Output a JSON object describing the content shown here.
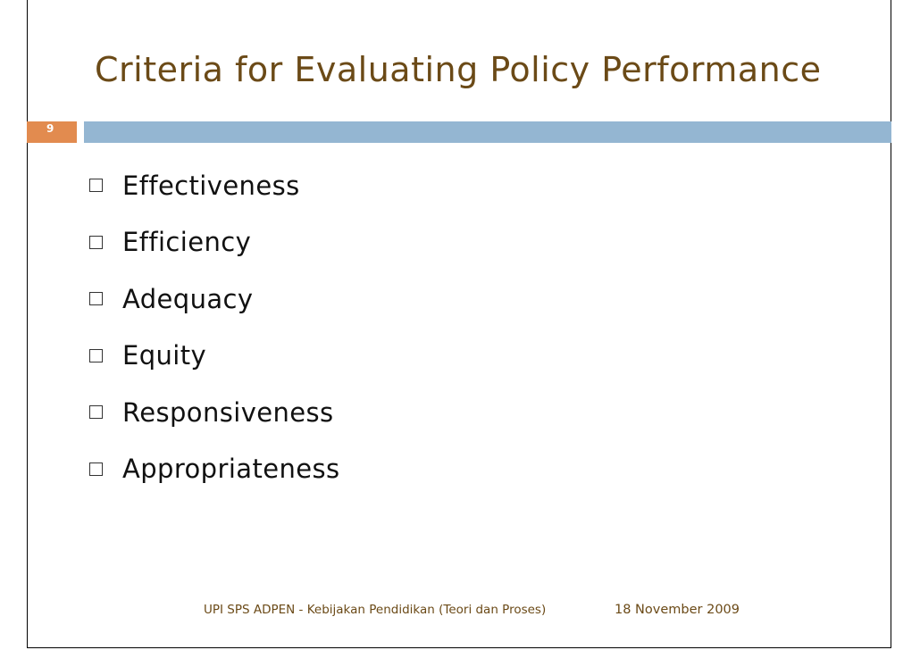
{
  "slide": {
    "title": "Criteria for Evaluating Policy Performance",
    "number": "9",
    "bullets": [
      "Effectiveness",
      "Efficiency",
      "Adequacy",
      "Equity",
      "Responsiveness",
      "Appropriateness"
    ],
    "footer": {
      "left": "UPI SPS ADPEN - Kebijakan Pendidikan (Teori dan Proses)",
      "right": "18 November 2009"
    }
  },
  "colors": {
    "title": "#6b4a17",
    "number_box": "#e28b4f",
    "accent_bar": "#94b6d2",
    "text": "#111111"
  },
  "icons": {
    "bullet": "square-bullet-icon"
  }
}
